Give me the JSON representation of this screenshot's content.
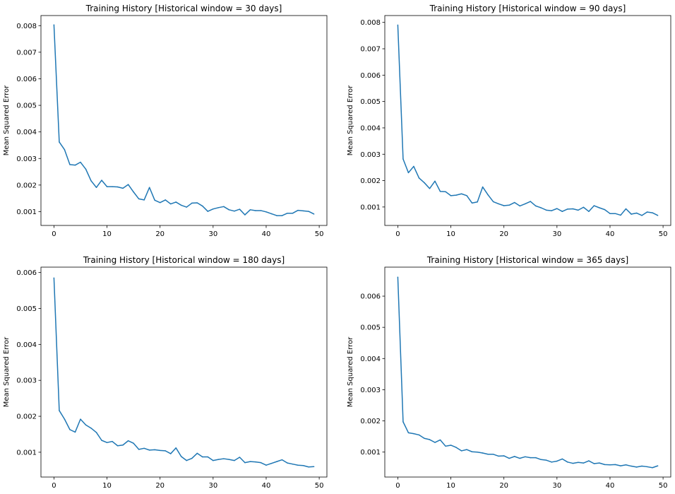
{
  "chart_data": [
    {
      "type": "line",
      "title": "Training History [Historical window = 30 days]",
      "ylabel": "Mean Squared Error",
      "xlabel": "",
      "xlim": [
        -2.45,
        51.45
      ],
      "ylim": [
        0.00048,
        0.00838
      ],
      "xticks": [
        0,
        10,
        20,
        30,
        40,
        50
      ],
      "yticks": [
        0.001,
        0.002,
        0.003,
        0.004,
        0.005,
        0.006,
        0.007,
        0.008
      ],
      "ytick_labels": [
        "0.001",
        "0.002",
        "0.003",
        "0.004",
        "0.005",
        "0.006",
        "0.007",
        "0.008"
      ],
      "color": "#1f77b4",
      "grid": false,
      "x": [
        0,
        1,
        2,
        3,
        4,
        5,
        6,
        7,
        8,
        9,
        10,
        11,
        12,
        13,
        14,
        15,
        16,
        17,
        18,
        19,
        20,
        21,
        22,
        23,
        24,
        25,
        26,
        27,
        28,
        29,
        30,
        31,
        32,
        33,
        34,
        35,
        36,
        37,
        38,
        39,
        40,
        41,
        42,
        43,
        44,
        45,
        46,
        47,
        48,
        49
      ],
      "values": [
        0.00803,
        0.00362,
        0.00333,
        0.00277,
        0.00275,
        0.00286,
        0.0026,
        0.00216,
        0.00191,
        0.00218,
        0.00194,
        0.00194,
        0.00193,
        0.00188,
        0.00202,
        0.00174,
        0.00148,
        0.00144,
        0.00191,
        0.00143,
        0.00134,
        0.00144,
        0.00129,
        0.00136,
        0.00124,
        0.00117,
        0.00132,
        0.00133,
        0.00121,
        0.00101,
        0.0011,
        0.00115,
        0.00119,
        0.00107,
        0.00102,
        0.00109,
        0.00088,
        0.00107,
        0.00104,
        0.00104,
        0.00099,
        0.00092,
        0.00085,
        0.00085,
        0.00094,
        0.00094,
        0.00105,
        0.00103,
        0.00101,
        0.00091
      ]
    },
    {
      "type": "line",
      "title": "Training History [Historical window = 90 days]",
      "ylabel": "Mean Squared Error",
      "xlabel": "",
      "xlim": [
        -2.45,
        51.45
      ],
      "ylim": [
        0.0003,
        0.00826
      ],
      "xticks": [
        0,
        10,
        20,
        30,
        40,
        50
      ],
      "yticks": [
        0.001,
        0.002,
        0.003,
        0.004,
        0.005,
        0.006,
        0.007,
        0.008
      ],
      "ytick_labels": [
        "0.001",
        "0.002",
        "0.003",
        "0.004",
        "0.005",
        "0.006",
        "0.007",
        "0.008"
      ],
      "color": "#1f77b4",
      "grid": false,
      "x": [
        0,
        1,
        2,
        3,
        4,
        5,
        6,
        7,
        8,
        9,
        10,
        11,
        12,
        13,
        14,
        15,
        16,
        17,
        18,
        19,
        20,
        21,
        22,
        23,
        24,
        25,
        26,
        27,
        28,
        29,
        30,
        31,
        32,
        33,
        34,
        35,
        36,
        37,
        38,
        39,
        40,
        41,
        42,
        43,
        44,
        45,
        46,
        47,
        48,
        49
      ],
      "values": [
        0.0079,
        0.00282,
        0.0023,
        0.00254,
        0.0021,
        0.00192,
        0.0017,
        0.00198,
        0.00159,
        0.00158,
        0.00143,
        0.00145,
        0.0015,
        0.00143,
        0.00115,
        0.00119,
        0.00176,
        0.00146,
        0.0012,
        0.00112,
        0.00105,
        0.00107,
        0.00117,
        0.00104,
        0.00112,
        0.00121,
        0.00104,
        0.00097,
        0.00088,
        0.00086,
        0.00094,
        0.00083,
        0.00092,
        0.00093,
        0.00088,
        0.00099,
        0.00083,
        0.00105,
        0.00097,
        0.0009,
        0.00075,
        0.00075,
        0.00069,
        0.00093,
        0.00073,
        0.00077,
        0.00068,
        0.00081,
        0.00078,
        0.00068
      ]
    },
    {
      "type": "line",
      "title": "Training History [Historical window = 180 days]",
      "ylabel": "Mean Squared Error",
      "xlabel": "",
      "xlim": [
        -2.45,
        51.45
      ],
      "ylim": [
        0.00031,
        0.00615
      ],
      "xticks": [
        0,
        10,
        20,
        30,
        40,
        50
      ],
      "yticks": [
        0.001,
        0.002,
        0.003,
        0.004,
        0.005,
        0.006
      ],
      "ytick_labels": [
        "0.001",
        "0.002",
        "0.003",
        "0.004",
        "0.005",
        "0.006"
      ],
      "color": "#1f77b4",
      "grid": false,
      "x": [
        0,
        1,
        2,
        3,
        4,
        5,
        6,
        7,
        8,
        9,
        10,
        11,
        12,
        13,
        14,
        15,
        16,
        17,
        18,
        19,
        20,
        21,
        22,
        23,
        24,
        25,
        26,
        27,
        28,
        29,
        30,
        31,
        32,
        33,
        34,
        35,
        36,
        37,
        38,
        39,
        40,
        41,
        42,
        43,
        44,
        45,
        46,
        47,
        48,
        49
      ],
      "values": [
        0.00585,
        0.00216,
        0.00192,
        0.00163,
        0.00156,
        0.00192,
        0.00176,
        0.00167,
        0.00155,
        0.00133,
        0.00127,
        0.0013,
        0.00118,
        0.0012,
        0.00132,
        0.00125,
        0.00108,
        0.00111,
        0.00106,
        0.00107,
        0.00105,
        0.00104,
        0.00096,
        0.00112,
        0.00088,
        0.00077,
        0.00083,
        0.00097,
        0.00087,
        0.00087,
        0.00077,
        0.0008,
        0.00082,
        0.0008,
        0.00077,
        0.00086,
        0.00071,
        0.00074,
        0.00073,
        0.00071,
        0.00064,
        0.00069,
        0.00074,
        0.00079,
        0.0007,
        0.00067,
        0.00064,
        0.00063,
        0.00059,
        0.0006
      ]
    },
    {
      "type": "line",
      "title": "Training History [Historical window = 365 days]",
      "ylabel": "Mean Squared Error",
      "xlabel": "",
      "xlim": [
        -2.45,
        51.45
      ],
      "ylim": [
        0.0002,
        0.00693
      ],
      "xticks": [
        0,
        10,
        20,
        30,
        40,
        50
      ],
      "yticks": [
        0.001,
        0.002,
        0.003,
        0.004,
        0.005,
        0.006
      ],
      "ytick_labels": [
        "0.001",
        "0.002",
        "0.003",
        "0.004",
        "0.005",
        "0.006"
      ],
      "color": "#1f77b4",
      "grid": false,
      "x": [
        0,
        1,
        2,
        3,
        4,
        5,
        6,
        7,
        8,
        9,
        10,
        11,
        12,
        13,
        14,
        15,
        16,
        17,
        18,
        19,
        20,
        21,
        22,
        23,
        24,
        25,
        26,
        27,
        28,
        29,
        30,
        31,
        32,
        33,
        34,
        35,
        36,
        37,
        38,
        39,
        40,
        41,
        42,
        43,
        44,
        45,
        46,
        47,
        48,
        49
      ],
      "values": [
        0.00661,
        0.00197,
        0.00162,
        0.00159,
        0.00155,
        0.00144,
        0.0014,
        0.00131,
        0.00139,
        0.00119,
        0.00122,
        0.00115,
        0.00104,
        0.00108,
        0.00101,
        0.001,
        0.00097,
        0.00093,
        0.00093,
        0.00087,
        0.00088,
        0.0008,
        0.00086,
        0.0008,
        0.00085,
        0.00082,
        0.00082,
        0.00076,
        0.00074,
        0.00068,
        0.00071,
        0.00078,
        0.00068,
        0.00064,
        0.00067,
        0.00065,
        0.00072,
        0.00063,
        0.00065,
        0.0006,
        0.00059,
        0.0006,
        0.00056,
        0.00059,
        0.00055,
        0.00052,
        0.00055,
        0.00053,
        0.0005,
        0.00056
      ]
    }
  ]
}
